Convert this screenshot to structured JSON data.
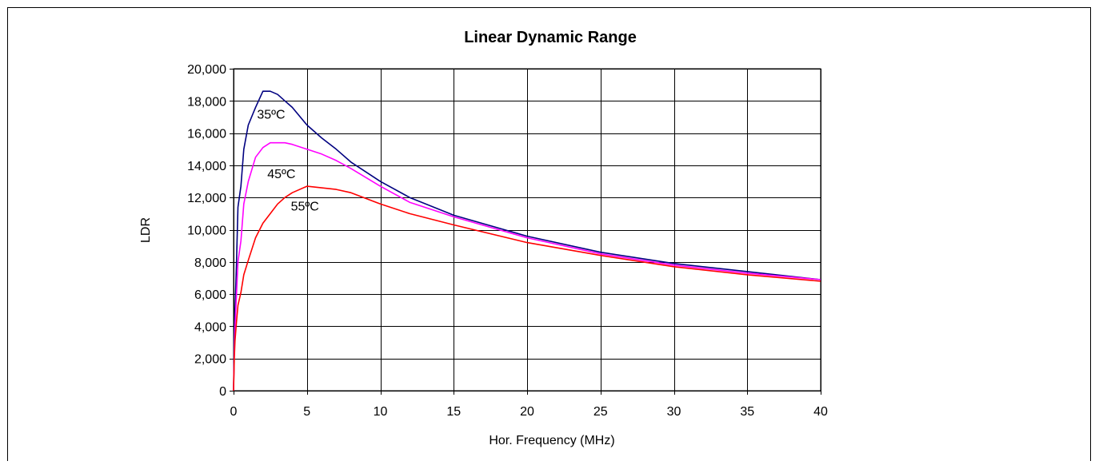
{
  "chart_data": {
    "type": "line",
    "title": "Linear Dynamic Range",
    "xlabel": "Hor. Frequency (MHz)",
    "ylabel": "LDR",
    "xlim": [
      0,
      40
    ],
    "ylim": [
      0,
      20000
    ],
    "x_ticks": [
      0,
      5,
      10,
      15,
      20,
      25,
      30,
      35,
      40
    ],
    "x_tick_labels": [
      "0",
      "5",
      "10",
      "15",
      "20",
      "25",
      "30",
      "35",
      "40"
    ],
    "y_ticks": [
      0,
      2000,
      4000,
      6000,
      8000,
      10000,
      12000,
      14000,
      16000,
      18000,
      20000
    ],
    "y_tick_labels": [
      "0",
      "2,000",
      "4,000",
      "6,000",
      "8,000",
      "10,000",
      "12,000",
      "14,000",
      "16,000",
      "18,000",
      "20,000"
    ],
    "grid": true,
    "legend": "none",
    "annotations": [
      {
        "text": "35ºC",
        "x": 1.6,
        "y": 16900
      },
      {
        "text": "45ºC",
        "x": 2.3,
        "y": 13200
      },
      {
        "text": "55ºC",
        "x": 3.9,
        "y": 11200
      }
    ],
    "series": [
      {
        "color": "#000080",
        "x": [
          0,
          0.05,
          0.1,
          0.2,
          0.3,
          0.5,
          0.7,
          1.0,
          1.5,
          2.0,
          2.5,
          3.0,
          3.5,
          4.0,
          5.0,
          6.0,
          7.0,
          8.0,
          10.0,
          12.0,
          15.0,
          20.0,
          25.0,
          30.0,
          35.0,
          40.0
        ],
        "y": [
          0,
          3000,
          5000,
          8000,
          11400,
          12700,
          15000,
          16500,
          17600,
          18600,
          18600,
          18400,
          18000,
          17600,
          16500,
          15700,
          15000,
          14200,
          13000,
          12000,
          10900,
          9600,
          8600,
          7900,
          7400,
          6900
        ]
      },
      {
        "color": "#ff00ff",
        "x": [
          0,
          0.05,
          0.1,
          0.2,
          0.3,
          0.5,
          0.7,
          1.0,
          1.5,
          2.0,
          2.5,
          3.0,
          3.5,
          4.0,
          5.0,
          6.0,
          7.0,
          8.0,
          10.0,
          12.0,
          15.0,
          20.0,
          25.0,
          30.0,
          35.0,
          40.0
        ],
        "y": [
          0,
          2500,
          4000,
          6000,
          8000,
          9300,
          11600,
          13000,
          14500,
          15100,
          15400,
          15400,
          15400,
          15300,
          15000,
          14700,
          14300,
          13800,
          12700,
          11700,
          10800,
          9500,
          8500,
          7800,
          7300,
          6900
        ]
      },
      {
        "color": "#ff0000",
        "x": [
          0,
          0.05,
          0.1,
          0.2,
          0.3,
          0.5,
          0.7,
          1.0,
          1.5,
          2.0,
          2.5,
          3.0,
          3.5,
          4.0,
          5.0,
          6.0,
          7.0,
          8.0,
          10.0,
          12.0,
          15.0,
          20.0,
          25.0,
          30.0,
          35.0,
          40.0
        ],
        "y": [
          0,
          2000,
          3100,
          4300,
          5300,
          6100,
          7200,
          8100,
          9500,
          10400,
          11000,
          11600,
          12000,
          12300,
          12700,
          12600,
          12500,
          12300,
          11600,
          11000,
          10300,
          9200,
          8400,
          7700,
          7200,
          6800
        ]
      }
    ]
  }
}
